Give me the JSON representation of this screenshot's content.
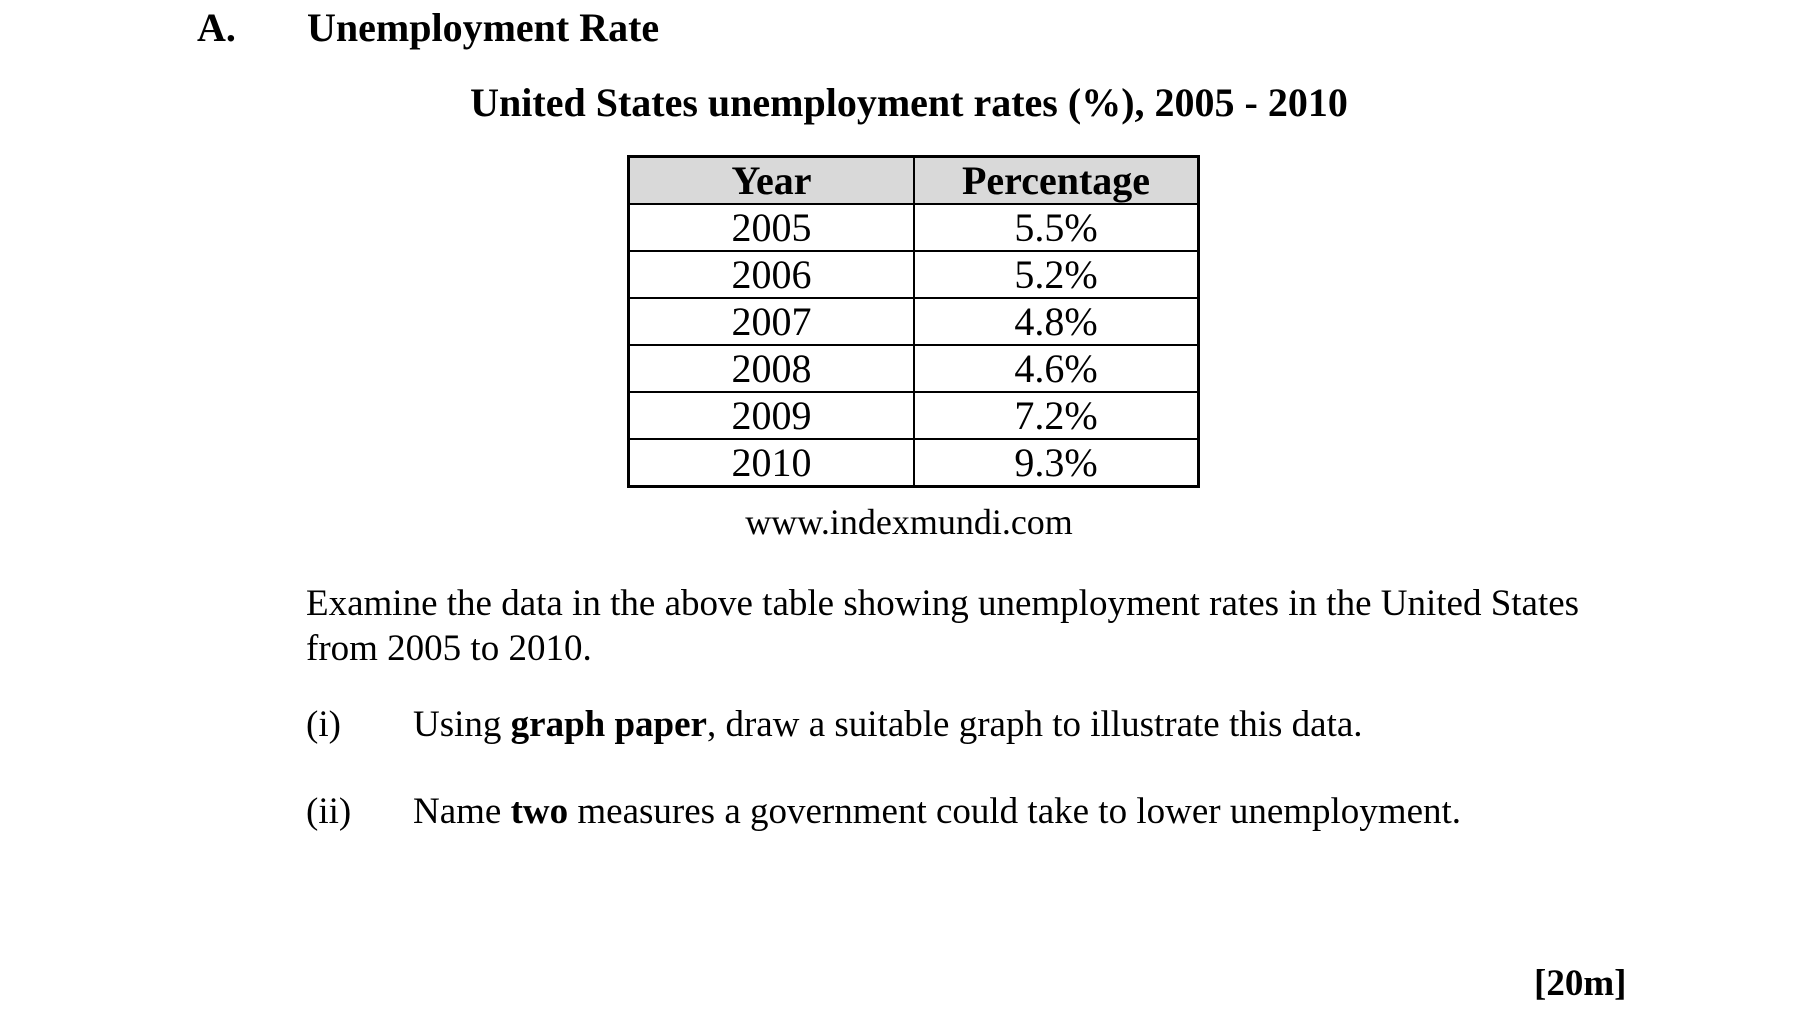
{
  "heading": {
    "label": "A.",
    "title": "Unemployment Rate"
  },
  "table": {
    "title": "United States unemployment rates (%), 2005 - 2010",
    "columns": [
      "Year",
      "Percentage"
    ],
    "rows": [
      [
        "2005",
        "5.5%"
      ],
      [
        "2006",
        "5.2%"
      ],
      [
        "2007",
        "4.8%"
      ],
      [
        "2008",
        "4.6%"
      ],
      [
        "2009",
        "7.2%"
      ],
      [
        "2010",
        "9.3%"
      ]
    ],
    "header_bg": "#d9d9d9",
    "source": "www.indexmundi.com"
  },
  "instructions": {
    "paragraph_lines": [
      "Examine the data in the above table showing unemployment rates in the United States",
      "from 2005 to 2010."
    ],
    "items": [
      {
        "num": "(i)",
        "pre": "Using ",
        "bold": "graph paper",
        "post": ", draw a suitable graph to illustrate this data."
      },
      {
        "num": "(ii)",
        "pre": "Name ",
        "bold": "two",
        "post": " measures a government could take to lower unemployment."
      }
    ]
  },
  "marks": {
    "label": "[20m]"
  },
  "chart_data": {
    "type": "table",
    "title": "United States unemployment rates (%), 2005 - 2010",
    "columns": [
      "Year",
      "Percentage"
    ],
    "x": [
      2005,
      2006,
      2007,
      2008,
      2009,
      2010
    ],
    "values": [
      5.5,
      5.2,
      4.8,
      4.6,
      7.2,
      9.3
    ],
    "unit": "%",
    "source": "www.indexmundi.com"
  }
}
